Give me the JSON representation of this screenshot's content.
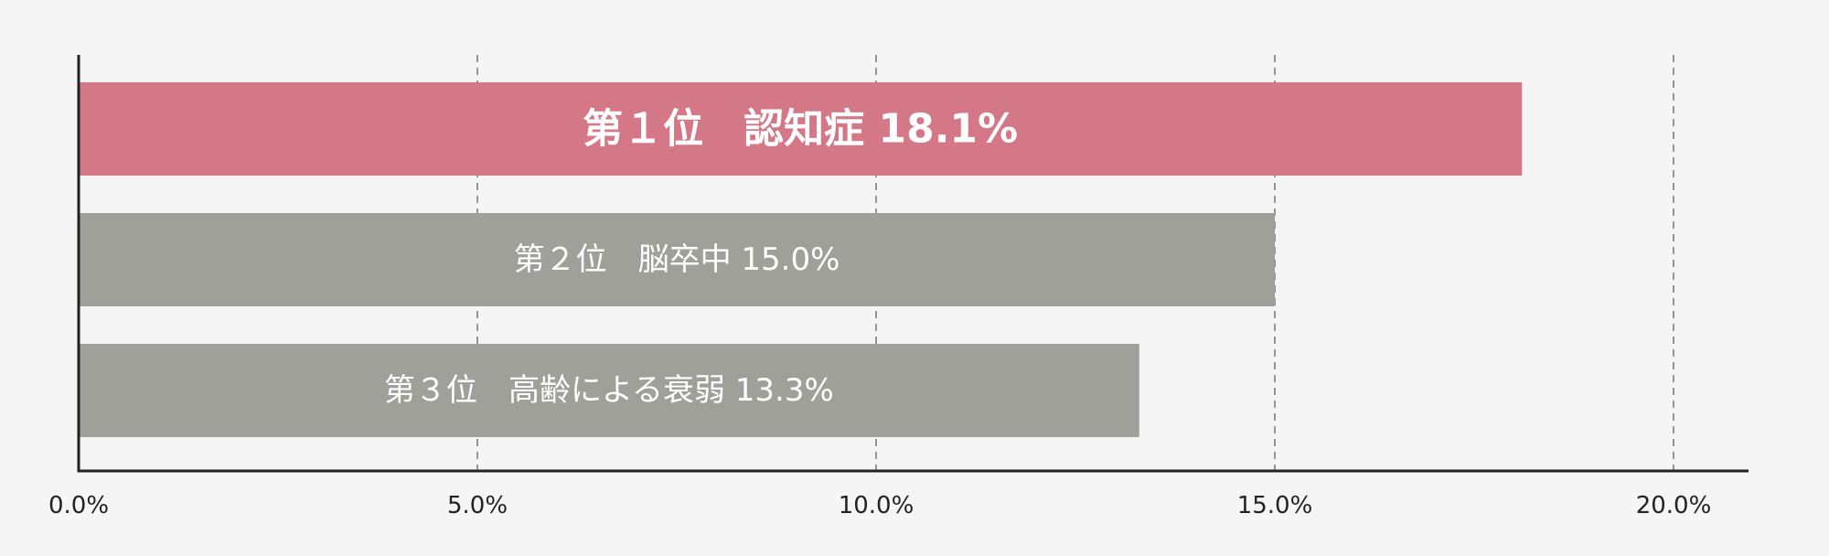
{
  "chart_data": {
    "type": "bar",
    "orientation": "horizontal",
    "categories": [
      "第１位　認知症",
      "第２位　脳卒中",
      "第３位　高齢による衰弱"
    ],
    "values": [
      18.1,
      15.0,
      13.3
    ],
    "data_labels": [
      "第１位　認知症 18.1%",
      "第２位　脳卒中 15.0%",
      "第３位　高齢による衰弱 13.3%"
    ],
    "xlim": [
      0,
      21
    ],
    "x_ticks": [
      0,
      5,
      10,
      15,
      20
    ],
    "x_tick_labels": [
      "0.0%",
      "5.0%",
      "10.0%",
      "15.0%",
      "20.0%"
    ],
    "grid": "vertical-dashed",
    "title": "",
    "xlabel": "",
    "ylabel": ""
  },
  "colors": {
    "background": "#f5f5f5",
    "highlight_bar": "#d47786",
    "default_bar": "#a0a09a",
    "axis": "#222222",
    "grid": "#555555",
    "label_text": "#ffffff"
  }
}
